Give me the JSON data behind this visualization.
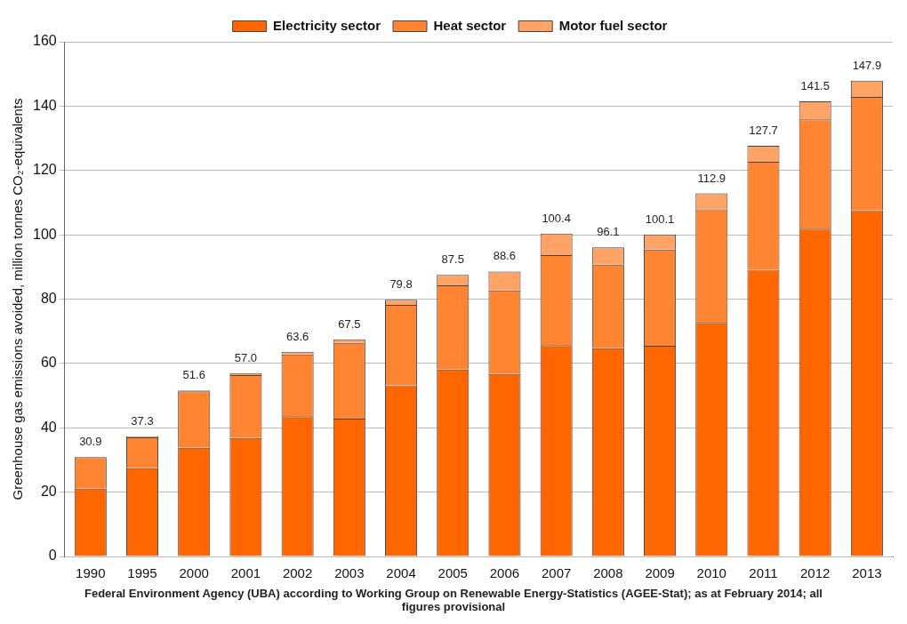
{
  "chart_data": {
    "type": "bar",
    "stacked": true,
    "ylabel": "Greenhouse gas emissions avoided, million tonnes CO₂-equivalents",
    "categories": [
      "1990",
      "1995",
      "2000",
      "2001",
      "2002",
      "2003",
      "2004",
      "2005",
      "2006",
      "2007",
      "2008",
      "2009",
      "2010",
      "2011",
      "2012",
      "2013"
    ],
    "series": [
      {
        "name": "Electricity sector",
        "color": "#ff6600",
        "values": [
          21.1,
          27.4,
          33.8,
          36.8,
          43.6,
          42.8,
          53.2,
          58.1,
          56.7,
          65.7,
          64.7,
          65.5,
          72.9,
          89.1,
          101.9,
          107.6
        ]
      },
      {
        "name": "Heat sector",
        "color": "#ff8533",
        "values": [
          9.8,
          9.6,
          17.5,
          19.6,
          19.2,
          23.6,
          25.0,
          26.2,
          26.0,
          28.0,
          26.0,
          29.9,
          35.0,
          33.6,
          34.0,
          35.3
        ]
      },
      {
        "name": "Motor fuel sector",
        "color": "#ffa366",
        "values": [
          0,
          0.3,
          0.3,
          0.6,
          0.8,
          1.1,
          1.6,
          3.2,
          5.9,
          6.7,
          5.4,
          4.7,
          5.0,
          5.0,
          5.6,
          5.0
        ]
      }
    ],
    "totals": [
      "30.9",
      "37.3",
      "51.6",
      "57.0",
      "63.6",
      "67.5",
      "79.8",
      "87.5",
      "88.6",
      "100.4",
      "96.1",
      "100.1",
      "112.9",
      "127.7",
      "141.5",
      "147.9"
    ],
    "ylim": [
      0,
      160
    ],
    "yticks": [
      0,
      20,
      40,
      60,
      80,
      100,
      120,
      140,
      160
    ],
    "grid": "y",
    "legend": "top",
    "annotations": [
      "Federal Environment Agency (UBA) according to Working Group on Renewable Energy-Statistics (AGEE-Stat); as at February 2014; all figures provisional"
    ]
  }
}
